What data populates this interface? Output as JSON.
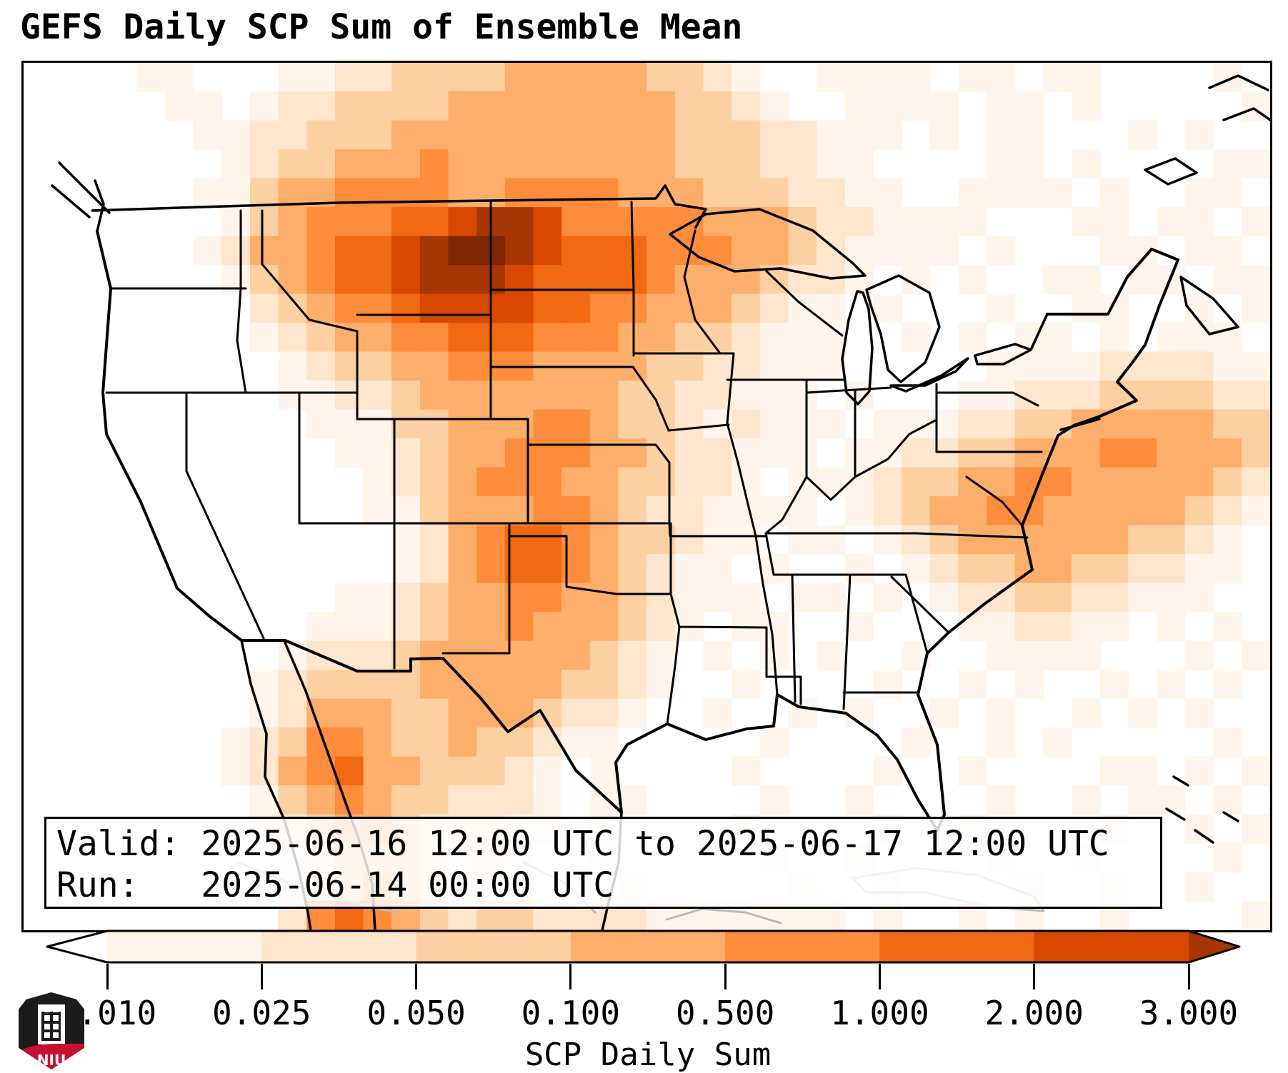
{
  "title": "GEFS Daily SCP Sum of Ensemble Mean",
  "info_box": {
    "valid_line": "Valid: 2025-06-16 12:00 UTC to 2025-06-17 12:00 UTC",
    "run_line": "Run:   2025-06-14 00:00 UTC"
  },
  "colorbar": {
    "label": "SCP Daily Sum",
    "tick_labels": [
      "0.010",
      "0.025",
      "0.050",
      "0.100",
      "0.500",
      "1.000",
      "2.000",
      "3.000"
    ],
    "segments": [
      "#fff5eb",
      "#fee6ce",
      "#fdd0a2",
      "#fdae6b",
      "#fd8d3c",
      "#f16913",
      "#d94801"
    ],
    "under_color": "#ffffff",
    "over_color": "#a63603",
    "outline_color": "#000000"
  },
  "logo": {
    "text": "NIU",
    "shield_top_color": "#1b1b1b",
    "shield_bottom_color": "#c8102e"
  },
  "chart_data": {
    "type": "heatmap",
    "title": "GEFS Daily SCP Sum of Ensemble Mean",
    "colorbar_label": "SCP Daily Sum",
    "levels": [
      0.01,
      0.025,
      0.05,
      0.1,
      0.5,
      1.0,
      2.0,
      3.0
    ],
    "level_colors": [
      "#fff5eb",
      "#fee6ce",
      "#fdd0a2",
      "#fdae6b",
      "#fd8d3c",
      "#f16913",
      "#d94801"
    ],
    "extend": "both",
    "valid": "2025-06-16 12:00 UTC to 2025-06-17 12:00 UTC",
    "run": "2025-06-14 00:00 UTC"
  },
  "map": {
    "border_color": "#000000",
    "neighbor_line_color": "#b8b8b8",
    "heatmap": {
      "cols": 44,
      "rows_count": 30,
      "palette": {
        "1": "#fff5eb",
        "2": "#fee6ce",
        "3": "#fdd0a2",
        "4": "#fdae6b",
        "5": "#fd8d3c",
        "6": "#f16913",
        "7": "#d94801",
        "8": "#a63603",
        "9": "#7f2704"
      },
      "rows": [
        "00001100011223333444443321001111011011000010",
        "00000110122333344444444332100111101101000001",
        "00000011223334444444444333221110101100010100",
        "00000001233444544444444333221100001101000011",
        "00000011344555544555544433322110011110100110",
        "00000001345556678875555544432211110001101101",
        "00000012445667899876665554432111101000110110",
        "00000001345667888766665444322101010011011011",
        "00000000234556777766554443211010001001100101",
        "00000000123445566655544332111001010110101110",
        "00000000012334455544443322111000001111222211",
        "00000000011223444444433221110100011222333322",
        "00000000001113344455433212111011122334444433",
        "00000000000112344555443221110112233444554443",
        "00000000000012345554433221011123344554444432",
        "00000000000011344455432211110123445544444321",
        "00000000000001245665433211011012344444433210",
        "00000000000001245665432110100101233443322110",
        "00000000000112344554432111011010122332211100",
        "00000000001112344544432101100100011221101010",
        "00000000012223444444321010101001001111000101",
        "00000000123333444443321001000010010100101010",
        "00000000124443344432210010010100101001010100",
        "00000001235543343321100000100001001010000010",
        "00000001245644333210100001000010010000110101",
        "00000000134543322210110000100100001001011010",
        "00000000123443222110100001000010010000100101",
        "00000000012333212100100000100100001001000010",
        "00000000012343211100010000010010000100100100",
        "00000000025654323322221111111010010100100001"
      ]
    }
  }
}
